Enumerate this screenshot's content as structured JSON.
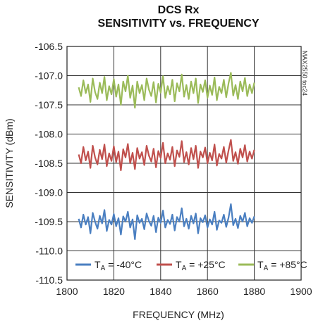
{
  "chart_data": {
    "type": "line",
    "title": "DCS Rx",
    "subtitle": "SENSITIVITY vs. FREQUENCY",
    "xlabel": "FREQUENCY (MHz)",
    "ylabel": "SENSITIVITY (dBm)",
    "part_number": "MAX2550 toc24",
    "xlim": [
      1800,
      1900
    ],
    "ylim": [
      -110.5,
      -106.5
    ],
    "x_ticks": [
      "1800",
      "1820",
      "1840",
      "1860",
      "1880",
      "1900"
    ],
    "y_ticks": [
      "-106.5",
      "-107.0",
      "-107.5",
      "-108.0",
      "-108.5",
      "-109.0",
      "-109.5",
      "-110.0",
      "-110.5"
    ],
    "grid": true,
    "legend_position": "bottom",
    "x_range_data": [
      1805,
      1880
    ],
    "series": [
      {
        "name": "T",
        "subscript": "A",
        "label_suffix": " = -40°C",
        "color": "#4a7fc1",
        "mean": -109.48,
        "values": [
          -109.45,
          -109.6,
          -109.38,
          -109.55,
          -109.42,
          -109.7,
          -109.35,
          -109.5,
          -109.62,
          -109.4,
          -109.53,
          -109.3,
          -109.66,
          -109.47,
          -109.55,
          -109.37,
          -109.58,
          -109.44,
          -109.72,
          -109.41,
          -109.5,
          -109.33,
          -109.6,
          -109.46,
          -109.8,
          -109.39,
          -109.52,
          -109.45,
          -109.63,
          -109.36,
          -109.49,
          -109.57,
          -109.4,
          -109.68,
          -109.43,
          -109.52,
          -109.31,
          -109.6,
          -109.47,
          -109.54,
          -109.38,
          -109.65,
          -109.42,
          -109.5,
          -109.27,
          -109.58,
          -109.45,
          -109.62,
          -109.4,
          -109.53,
          -109.36,
          -109.7,
          -109.44,
          -109.51,
          -109.39,
          -109.6,
          -109.46,
          -109.55,
          -109.33,
          -109.64,
          -109.48,
          -109.52,
          -109.38,
          -109.59,
          -109.43,
          -109.2,
          -109.56,
          -109.45,
          -109.61,
          -109.4,
          -109.5,
          -109.35,
          -109.58,
          -109.44,
          -109.52,
          -109.41
        ]
      },
      {
        "name": "T",
        "subscript": "A",
        "label_suffix": " = +25°C",
        "color": "#c0504d",
        "mean": -108.32,
        "values": [
          -108.35,
          -108.5,
          -108.22,
          -108.45,
          -108.3,
          -108.58,
          -108.2,
          -108.4,
          -108.52,
          -108.27,
          -108.43,
          -108.18,
          -108.55,
          -108.33,
          -108.46,
          -108.21,
          -108.48,
          -108.3,
          -108.62,
          -108.26,
          -108.4,
          -108.17,
          -108.5,
          -108.32,
          -108.6,
          -108.24,
          -108.42,
          -108.31,
          -108.53,
          -108.2,
          -108.37,
          -108.47,
          -108.25,
          -108.57,
          -108.29,
          -108.41,
          -108.15,
          -108.5,
          -108.33,
          -108.44,
          -108.22,
          -108.55,
          -108.28,
          -108.39,
          -108.12,
          -108.48,
          -108.31,
          -108.52,
          -108.24,
          -108.43,
          -108.2,
          -108.58,
          -108.3,
          -108.4,
          -108.23,
          -108.5,
          -108.32,
          -108.45,
          -108.18,
          -108.54,
          -108.34,
          -108.42,
          -108.22,
          -108.49,
          -108.28,
          -108.1,
          -108.46,
          -108.31,
          -108.51,
          -108.25,
          -108.4,
          -108.19,
          -108.47,
          -108.3,
          -108.42,
          -108.27
        ]
      },
      {
        "name": "T",
        "subscript": "A",
        "label_suffix": " = +85°C",
        "color": "#9bbb59",
        "mean": -107.22,
        "values": [
          -107.2,
          -107.35,
          -107.08,
          -107.3,
          -107.15,
          -107.45,
          -107.05,
          -107.28,
          -107.4,
          -107.12,
          -107.3,
          -107.02,
          -107.42,
          -107.18,
          -107.32,
          -107.06,
          -107.36,
          -107.15,
          -107.5,
          -107.1,
          -107.27,
          -107.0,
          -107.38,
          -107.17,
          -107.55,
          -107.1,
          -107.3,
          -107.16,
          -107.42,
          -107.05,
          -107.24,
          -107.35,
          -107.11,
          -107.46,
          -107.14,
          -107.29,
          -107.01,
          -107.38,
          -107.18,
          -107.32,
          -107.07,
          -107.44,
          -107.13,
          -107.27,
          -106.98,
          -107.36,
          -107.16,
          -107.4,
          -107.1,
          -107.3,
          -107.05,
          -107.47,
          -107.15,
          -107.28,
          -107.08,
          -107.38,
          -107.17,
          -107.33,
          -107.03,
          -107.42,
          -107.19,
          -107.3,
          -107.07,
          -107.37,
          -107.13,
          -106.95,
          -107.34,
          -107.16,
          -107.4,
          -107.1,
          -107.27,
          -107.04,
          -107.35,
          -107.15,
          -107.3,
          -107.12
        ]
      }
    ]
  }
}
